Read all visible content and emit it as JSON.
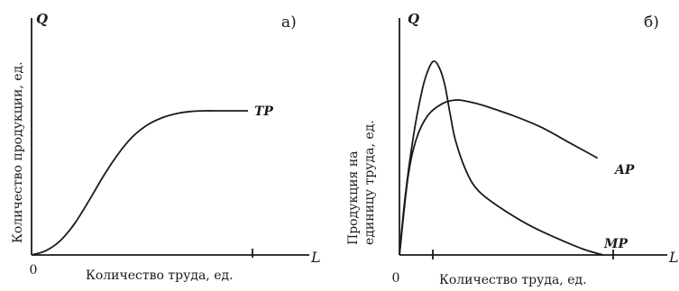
{
  "chart_data": [
    {
      "type": "line",
      "panel_label": "а)",
      "xlabel_symbol": "L",
      "ylabel_symbol": "Q",
      "xlabel": "Количество труда, ед.",
      "ylabel": "Количество продукции, ед.",
      "origin_label": "0",
      "series": [
        {
          "name": "TP",
          "x": [
            0,
            5,
            10,
            15,
            20,
            25,
            30,
            35,
            40,
            45,
            50,
            55,
            60,
            65,
            70,
            75
          ],
          "y": [
            0,
            3,
            10,
            22,
            38,
            55,
            70,
            82,
            90,
            95,
            98,
            99.5,
            100,
            100,
            100,
            100
          ]
        }
      ]
    },
    {
      "type": "line",
      "panel_label": "б)",
      "xlabel_symbol": "L",
      "ylabel_symbol": "Q",
      "xlabel": "Количество труда, ед.",
      "ylabel": "Продукция на единицу труда, ед.",
      "origin_label": "0",
      "series": [
        {
          "name": "MP",
          "x": [
            0,
            2,
            5,
            8,
            10,
            12,
            14,
            16,
            18,
            20,
            24,
            28,
            35,
            45,
            55,
            65,
            72
          ],
          "y": [
            0,
            30,
            62,
            85,
            95,
            100,
            97,
            88,
            72,
            58,
            42,
            33,
            25,
            16,
            9,
            3,
            0
          ]
        },
        {
          "name": "AP",
          "x": [
            0,
            3,
            6,
            10,
            15,
            20,
            25,
            30,
            40,
            50,
            60,
            70
          ],
          "y": [
            0,
            40,
            60,
            72,
            78,
            80,
            79,
            77,
            72,
            66,
            58,
            50
          ]
        }
      ]
    }
  ]
}
